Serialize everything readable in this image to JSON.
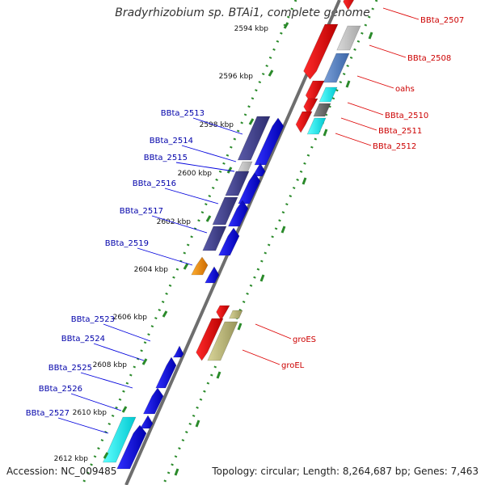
{
  "title": "Bradyrhizobium sp. BTAi1, complete genome",
  "accession_label": "Accession: NC_009485",
  "topology_label": "Topology: circular; Length: 8,264,687 bp; Genes: 7,463",
  "colors": {
    "backbone": "#6e6e6e",
    "tick_dot": "#2a8a2a",
    "left_label": "#0000aa",
    "right_label": "#cc0000"
  },
  "scale_labels": [
    "2594 kbp",
    "2596 kbp",
    "2598 kbp",
    "2600 kbp",
    "2602 kbp",
    "2604 kbp",
    "2606 kbp",
    "2608 kbp",
    "2610 kbp",
    "2612 kbp"
  ],
  "left_genes": [
    "BBta_2513",
    "BBta_2514",
    "BBta_2515",
    "BBta_2516",
    "BBta_2517",
    "BBta_2519",
    "BBta_2523",
    "BBta_2524",
    "BBta_2525",
    "BBta_2526",
    "BBta_2527"
  ],
  "right_genes": [
    "BBta_2507",
    "BBta_2508",
    "oahs",
    "BBta_2510",
    "BBta_2511",
    "BBta_2512",
    "groES",
    "groEL"
  ]
}
